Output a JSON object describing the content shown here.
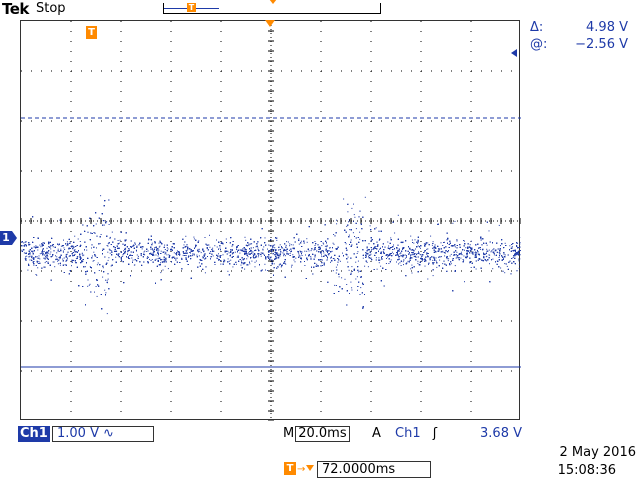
{
  "header": {
    "brand": "Tek",
    "acq_state": "Stop"
  },
  "markers": {
    "trigger_position_glyph": "T",
    "channel_marker": "1"
  },
  "cursor_readout": {
    "delta_label": "Δ:",
    "delta_value": "4.98 V",
    "at_label": "@:",
    "at_value": "−2.56 V"
  },
  "status": {
    "channel_tag": "Ch1",
    "channel_scale": "1.00 V",
    "coupling_icon": "∿",
    "timebase_prefix": "M",
    "timebase": "20.0ms",
    "trigger_mode": "A",
    "trigger_source": "Ch1",
    "trigger_slope": "ʃ",
    "trigger_level": "3.68 V"
  },
  "horizontal_position": {
    "icon": "T",
    "arrow": "→",
    "value": "72.0000ms"
  },
  "datetime": {
    "date": "2 May 2016",
    "time": "15:08:36"
  },
  "colors": {
    "trace": "#1e3aa8",
    "trigger": "#ff8a00",
    "grid": "#000000"
  },
  "icons": {
    "trigger_marker": "trigger-position-icon",
    "channel_marker": "channel-1-marker-icon",
    "coupling": "ac-coupling-icon",
    "slope": "rising-edge-icon"
  }
}
